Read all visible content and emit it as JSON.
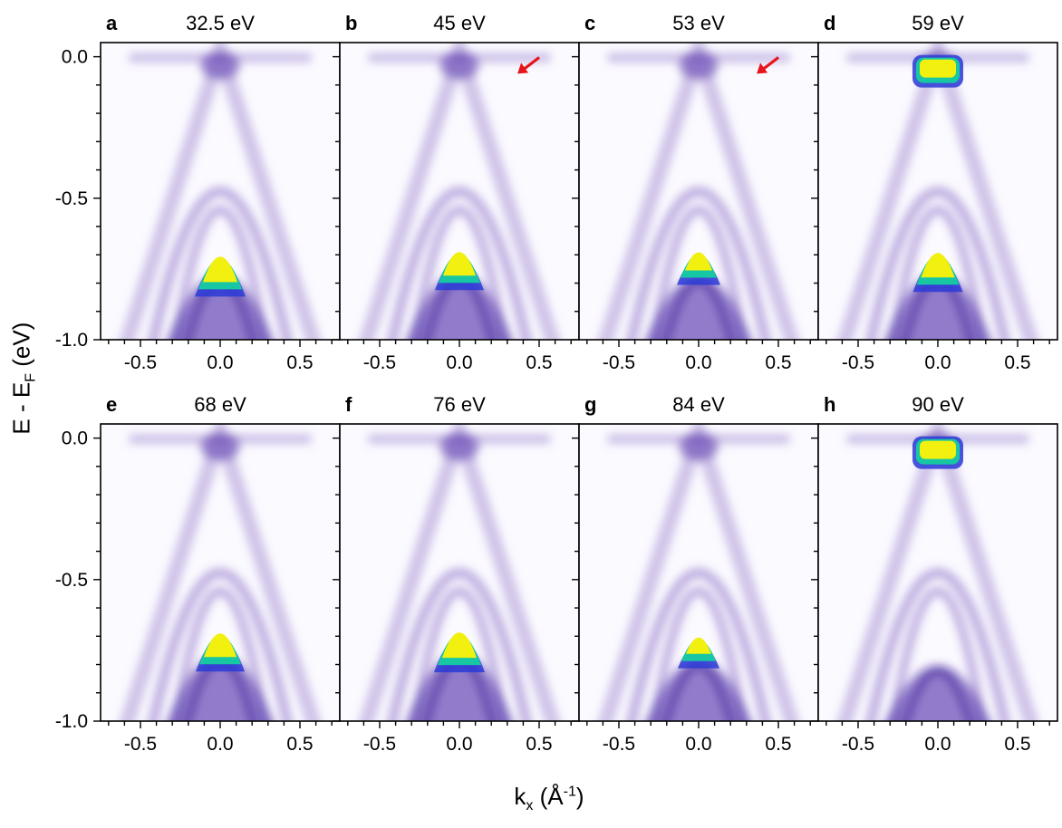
{
  "figure": {
    "y_axis_label_main": "E - E",
    "y_axis_label_sub": "F",
    "y_axis_label_unit": " (eV)",
    "x_axis_label_main": "k",
    "x_axis_label_sub": "x",
    "x_axis_label_unit_open": " (Å",
    "x_axis_label_sup": "-1",
    "x_axis_label_unit_close": ")"
  },
  "chart_data": [
    {
      "type": "heatmap",
      "panel": "a",
      "title": "32.5 eV",
      "xlim": [
        -0.75,
        0.75
      ],
      "ylim": [
        -1.0,
        0.05
      ],
      "x_ticks": [
        -0.5,
        0.0,
        0.5
      ],
      "x_tick_labels": [
        "-0.5",
        "0.0",
        "0.5"
      ],
      "y_ticks": [
        0.0,
        -0.5,
        -1.0
      ],
      "y_tick_labels": [
        "0.0",
        "-0.5",
        "-1.0"
      ],
      "arrow": false,
      "colormap": [
        "#ffffff",
        "#d6d0ea",
        "#8a6bc4",
        "#4a1aa8",
        "#2a2ccf",
        "#14c7a0",
        "#f4f20a"
      ],
      "hot_band_top_eV": -0.63,
      "hot_intensity": 1.0
    },
    {
      "type": "heatmap",
      "panel": "b",
      "title": "45 eV",
      "xlim": [
        -0.75,
        0.75
      ],
      "ylim": [
        -1.0,
        0.05
      ],
      "x_ticks": [
        -0.5,
        0.0,
        0.5
      ],
      "x_tick_labels": [
        "-0.5",
        "0.0",
        "0.5"
      ],
      "y_ticks": [
        0.0,
        -0.5,
        -1.0
      ],
      "arrow": true,
      "arrow_color": "#e8141c",
      "hot_band_top_eV": -0.62,
      "hot_intensity": 0.9
    },
    {
      "type": "heatmap",
      "panel": "c",
      "title": "53 eV",
      "xlim": [
        -0.75,
        0.75
      ],
      "ylim": [
        -1.0,
        0.05
      ],
      "x_ticks": [
        -0.5,
        0.0,
        0.5
      ],
      "x_tick_labels": [
        "-0.5",
        "0.0",
        "0.5"
      ],
      "y_ticks": [
        0.0,
        -0.5,
        -1.0
      ],
      "arrow": true,
      "arrow_color": "#e8141c",
      "hot_band_top_eV": -0.64,
      "hot_intensity": 0.6
    },
    {
      "type": "heatmap",
      "panel": "d",
      "title": "59 eV",
      "xlim": [
        -0.75,
        0.75
      ],
      "ylim": [
        -1.0,
        0.05
      ],
      "x_ticks": [
        -0.5,
        0.0,
        0.5
      ],
      "x_tick_labels": [
        "-0.5",
        "0.0",
        "0.5"
      ],
      "y_ticks": [
        0.0,
        -0.5,
        -1.0
      ],
      "arrow": false,
      "top_hot": true,
      "hot_band_top_eV": -0.62,
      "hot_intensity": 0.95
    },
    {
      "type": "heatmap",
      "panel": "e",
      "title": "68 eV",
      "xlim": [
        -0.75,
        0.75
      ],
      "ylim": [
        -1.0,
        0.05
      ],
      "x_ticks": [
        -0.5,
        0.0,
        0.5
      ],
      "x_tick_labels": [
        "-0.5",
        "0.0",
        "0.5"
      ],
      "y_ticks": [
        0.0,
        -0.5,
        -1.0
      ],
      "y_tick_labels": [
        "0.0",
        "-0.5",
        "-1.0"
      ],
      "arrow": false,
      "hot_band_top_eV": -0.62,
      "hot_intensity": 0.9
    },
    {
      "type": "heatmap",
      "panel": "f",
      "title": "76 eV",
      "xlim": [
        -0.75,
        0.75
      ],
      "ylim": [
        -1.0,
        0.05
      ],
      "x_ticks": [
        -0.5,
        0.0,
        0.5
      ],
      "x_tick_labels": [
        "-0.5",
        "0.0",
        "0.5"
      ],
      "y_ticks": [
        0.0,
        -0.5,
        -1.0
      ],
      "arrow": false,
      "hot_band_top_eV": -0.61,
      "hot_intensity": 1.0
    },
    {
      "type": "heatmap",
      "panel": "g",
      "title": "84 eV",
      "xlim": [
        -0.75,
        0.75
      ],
      "ylim": [
        -1.0,
        0.05
      ],
      "x_ticks": [
        -0.5,
        0.0,
        0.5
      ],
      "x_tick_labels": [
        "-0.5",
        "0.0",
        "0.5"
      ],
      "y_ticks": [
        0.0,
        -0.5,
        -1.0
      ],
      "arrow": false,
      "hot_band_top_eV": -0.66,
      "hot_intensity": 0.5
    },
    {
      "type": "heatmap",
      "panel": "h",
      "title": "90 eV",
      "xlim": [
        -0.75,
        0.75
      ],
      "ylim": [
        -1.0,
        0.05
      ],
      "x_ticks": [
        -0.5,
        0.0,
        0.5
      ],
      "x_tick_labels": [
        "-0.5",
        "0.0",
        "0.5"
      ],
      "y_ticks": [
        0.0,
        -0.5,
        -1.0
      ],
      "arrow": false,
      "top_hot": true,
      "hot_band_top_eV": -0.7,
      "hot_intensity": 0.0
    }
  ]
}
